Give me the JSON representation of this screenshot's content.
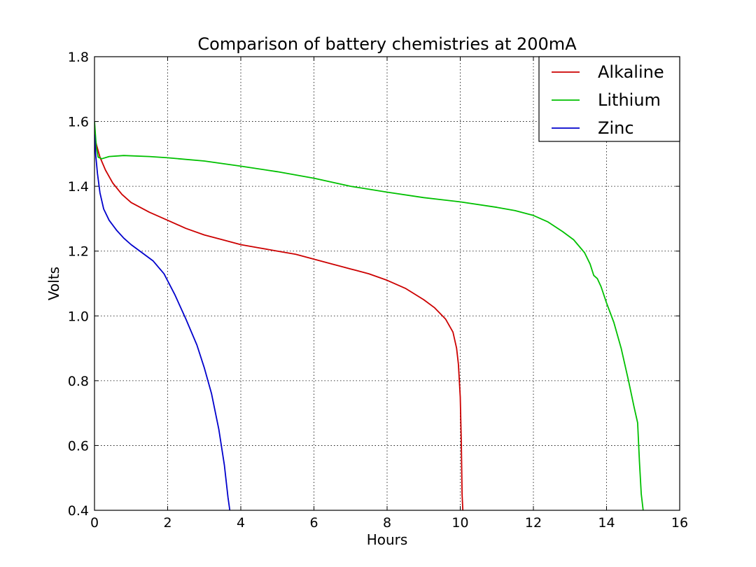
{
  "chart_data": {
    "type": "line",
    "title": "Comparison of battery chemistries at 200mA",
    "xlabel": "Hours",
    "ylabel": "Volts",
    "xlim": [
      0,
      16
    ],
    "ylim": [
      0.4,
      1.8
    ],
    "xticks": [
      0,
      2,
      4,
      6,
      8,
      10,
      12,
      14,
      16
    ],
    "yticks": [
      0.4,
      0.6,
      0.8,
      1.0,
      1.2,
      1.4,
      1.6,
      1.8
    ],
    "xtick_labels": [
      "0",
      "2",
      "4",
      "6",
      "8",
      "10",
      "12",
      "14",
      "16"
    ],
    "ytick_labels": [
      "0.4",
      "0.6",
      "0.8",
      "1.0",
      "1.2",
      "1.4",
      "1.6",
      "1.8"
    ],
    "grid": true,
    "legend_position": "top-right",
    "series": [
      {
        "name": "Alkaline",
        "color": "#cc0000",
        "x": [
          0,
          0.05,
          0.15,
          0.3,
          0.5,
          0.75,
          1.0,
          1.5,
          2.0,
          2.5,
          3.0,
          3.5,
          4.0,
          4.5,
          5.0,
          5.5,
          6.0,
          6.5,
          7.0,
          7.5,
          8.0,
          8.5,
          9.0,
          9.3,
          9.6,
          9.8,
          9.9,
          9.95,
          10.0,
          10.03,
          10.05,
          10.07
        ],
        "y": [
          1.56,
          1.53,
          1.49,
          1.45,
          1.41,
          1.375,
          1.35,
          1.32,
          1.295,
          1.27,
          1.25,
          1.235,
          1.22,
          1.21,
          1.2,
          1.19,
          1.175,
          1.16,
          1.145,
          1.13,
          1.11,
          1.085,
          1.05,
          1.025,
          0.99,
          0.95,
          0.9,
          0.85,
          0.75,
          0.6,
          0.45,
          0.4
        ]
      },
      {
        "name": "Lithium",
        "color": "#00c000",
        "x": [
          0,
          0.05,
          0.1,
          0.2,
          0.4,
          0.8,
          1.5,
          2.0,
          3.0,
          4.0,
          5.0,
          6.0,
          7.0,
          8.0,
          9.0,
          10.0,
          11.0,
          11.5,
          12.0,
          12.4,
          12.8,
          13.1,
          13.4,
          13.55,
          13.65,
          13.75,
          13.85,
          14.0,
          14.2,
          14.4,
          14.6,
          14.75,
          14.85,
          14.9,
          14.95,
          15.0
        ],
        "y": [
          1.6,
          1.52,
          1.49,
          1.485,
          1.492,
          1.495,
          1.492,
          1.488,
          1.478,
          1.462,
          1.445,
          1.425,
          1.4,
          1.382,
          1.365,
          1.352,
          1.335,
          1.325,
          1.31,
          1.29,
          1.26,
          1.235,
          1.195,
          1.16,
          1.125,
          1.115,
          1.09,
          1.04,
          0.98,
          0.9,
          0.8,
          0.72,
          0.67,
          0.55,
          0.45,
          0.4
        ]
      },
      {
        "name": "Zinc",
        "color": "#0000cc",
        "x": [
          0,
          0.03,
          0.08,
          0.15,
          0.25,
          0.4,
          0.6,
          0.8,
          1.0,
          1.3,
          1.6,
          1.9,
          2.2,
          2.5,
          2.8,
          3.0,
          3.2,
          3.4,
          3.55,
          3.65,
          3.7
        ],
        "y": [
          1.56,
          1.5,
          1.44,
          1.38,
          1.33,
          1.295,
          1.265,
          1.24,
          1.22,
          1.195,
          1.17,
          1.13,
          1.065,
          0.99,
          0.91,
          0.84,
          0.76,
          0.65,
          0.54,
          0.44,
          0.4
        ]
      }
    ]
  }
}
